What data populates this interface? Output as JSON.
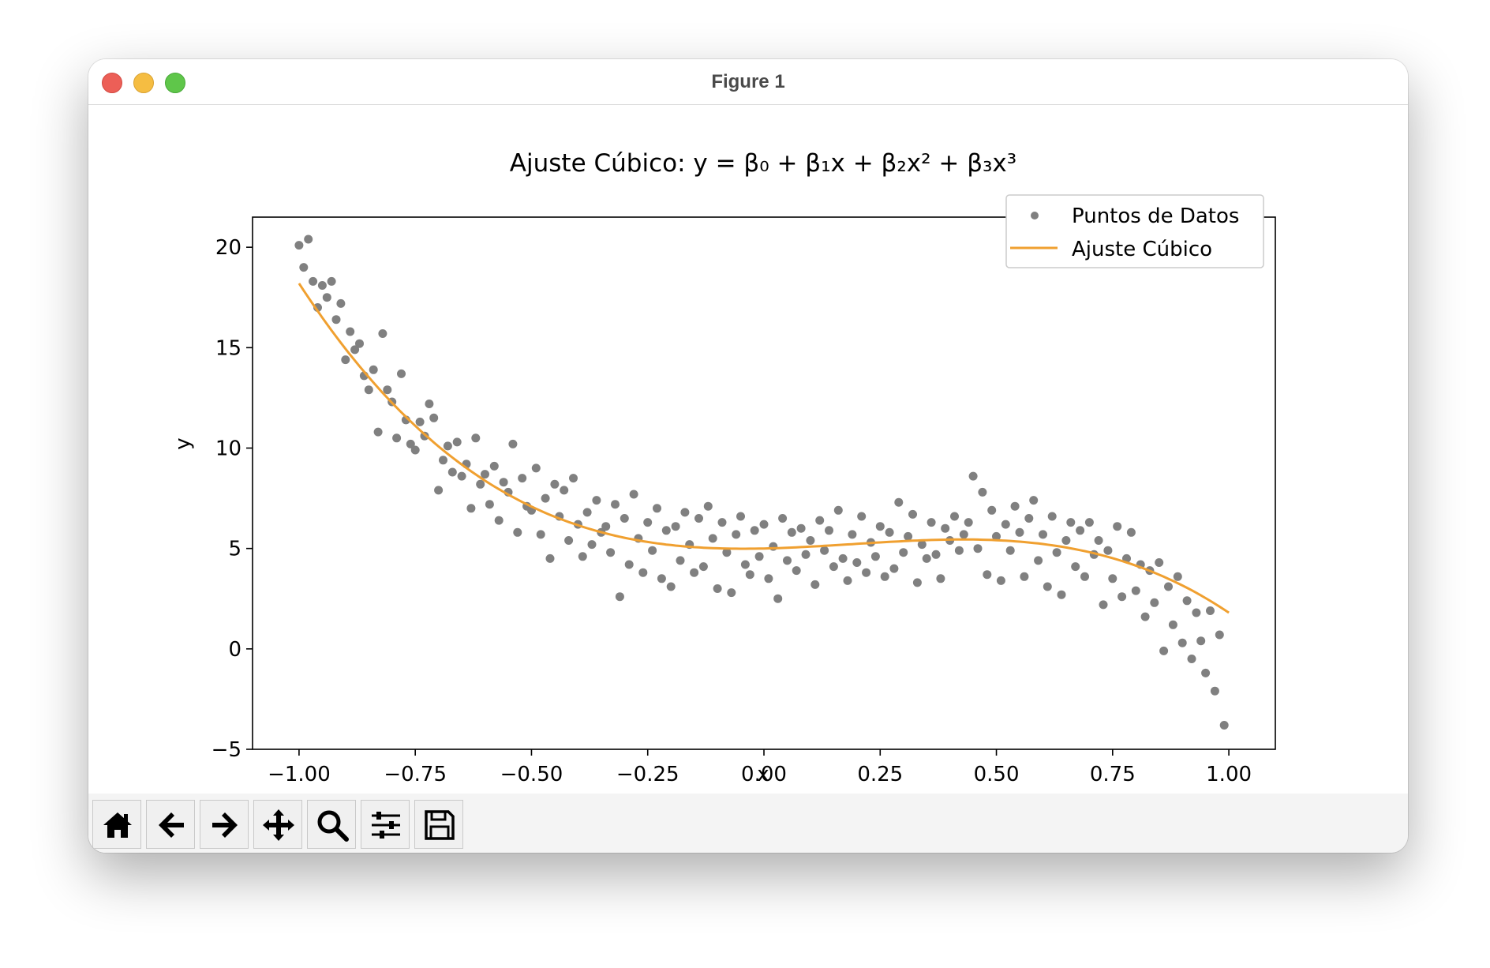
{
  "window": {
    "title": "Figure 1"
  },
  "toolbar": {
    "buttons": [
      {
        "icon": "home-icon"
      },
      {
        "icon": "back-arrow-icon"
      },
      {
        "icon": "forward-arrow-icon"
      },
      {
        "icon": "pan-icon"
      },
      {
        "icon": "zoom-icon"
      },
      {
        "icon": "configure-subplots-icon"
      },
      {
        "icon": "save-icon"
      }
    ]
  },
  "colors": {
    "points": "#808080",
    "fit": "#f0a030",
    "axes": "#000000"
  },
  "chart_data": {
    "type": "scatter",
    "title": "Ajuste Cúbico: y = β₀ + β₁x + β₂x² + β₃x³",
    "xlabel": "x",
    "ylabel": "y",
    "xlim": [
      -1.1,
      1.1
    ],
    "ylim": [
      -5,
      21.5
    ],
    "xticks": [
      -1.0,
      -0.75,
      -0.5,
      -0.25,
      0.0,
      0.25,
      0.5,
      0.75,
      1.0
    ],
    "xtick_labels": [
      "−1.00",
      "−0.75",
      "−0.50",
      "−0.25",
      "0.00",
      "0.25",
      "0.50",
      "0.75",
      "1.00"
    ],
    "yticks": [
      -5,
      0,
      5,
      10,
      15,
      20
    ],
    "ytick_labels": [
      "−5",
      "0",
      "5",
      "10",
      "15",
      "20"
    ],
    "legend": {
      "position": "top-right",
      "entries": [
        "Puntos de Datos",
        "Ajuste Cúbico"
      ]
    },
    "grid": false,
    "series": [
      {
        "name": "Puntos de Datos",
        "kind": "scatter",
        "points": [
          [
            -1.0,
            20.1
          ],
          [
            -0.99,
            19.0
          ],
          [
            -0.98,
            20.4
          ],
          [
            -0.97,
            18.3
          ],
          [
            -0.96,
            17.0
          ],
          [
            -0.95,
            18.1
          ],
          [
            -0.94,
            17.5
          ],
          [
            -0.93,
            18.3
          ],
          [
            -0.92,
            16.4
          ],
          [
            -0.91,
            17.2
          ],
          [
            -0.9,
            14.4
          ],
          [
            -0.89,
            15.8
          ],
          [
            -0.88,
            14.9
          ],
          [
            -0.87,
            15.2
          ],
          [
            -0.86,
            13.6
          ],
          [
            -0.85,
            12.9
          ],
          [
            -0.84,
            13.9
          ],
          [
            -0.83,
            10.8
          ],
          [
            -0.82,
            15.7
          ],
          [
            -0.81,
            12.9
          ],
          [
            -0.8,
            12.3
          ],
          [
            -0.79,
            10.5
          ],
          [
            -0.78,
            13.7
          ],
          [
            -0.77,
            11.4
          ],
          [
            -0.76,
            10.2
          ],
          [
            -0.75,
            9.9
          ],
          [
            -0.74,
            11.3
          ],
          [
            -0.73,
            10.6
          ],
          [
            -0.72,
            12.2
          ],
          [
            -0.71,
            11.5
          ],
          [
            -0.7,
            7.9
          ],
          [
            -0.69,
            9.4
          ],
          [
            -0.68,
            10.1
          ],
          [
            -0.67,
            8.8
          ],
          [
            -0.66,
            10.3
          ],
          [
            -0.65,
            8.6
          ],
          [
            -0.64,
            9.2
          ],
          [
            -0.63,
            7.0
          ],
          [
            -0.62,
            10.5
          ],
          [
            -0.61,
            8.2
          ],
          [
            -0.6,
            8.7
          ],
          [
            -0.59,
            7.2
          ],
          [
            -0.58,
            9.1
          ],
          [
            -0.57,
            6.4
          ],
          [
            -0.56,
            8.3
          ],
          [
            -0.55,
            7.8
          ],
          [
            -0.54,
            10.2
          ],
          [
            -0.53,
            5.8
          ],
          [
            -0.52,
            8.5
          ],
          [
            -0.51,
            7.1
          ],
          [
            -0.5,
            6.9
          ],
          [
            -0.49,
            9.0
          ],
          [
            -0.48,
            5.7
          ],
          [
            -0.47,
            7.5
          ],
          [
            -0.46,
            4.5
          ],
          [
            -0.45,
            8.2
          ],
          [
            -0.44,
            6.6
          ],
          [
            -0.43,
            7.9
          ],
          [
            -0.42,
            5.4
          ],
          [
            -0.41,
            8.5
          ],
          [
            -0.4,
            6.2
          ],
          [
            -0.39,
            4.6
          ],
          [
            -0.38,
            6.8
          ],
          [
            -0.37,
            5.2
          ],
          [
            -0.36,
            7.4
          ],
          [
            -0.35,
            5.8
          ],
          [
            -0.34,
            6.1
          ],
          [
            -0.33,
            4.8
          ],
          [
            -0.32,
            7.2
          ],
          [
            -0.31,
            2.6
          ],
          [
            -0.3,
            6.5
          ],
          [
            -0.29,
            4.2
          ],
          [
            -0.28,
            7.7
          ],
          [
            -0.27,
            5.5
          ],
          [
            -0.26,
            3.8
          ],
          [
            -0.25,
            6.3
          ],
          [
            -0.24,
            4.9
          ],
          [
            -0.23,
            7.0
          ],
          [
            -0.22,
            3.5
          ],
          [
            -0.21,
            5.9
          ],
          [
            -0.2,
            3.1
          ],
          [
            -0.19,
            6.1
          ],
          [
            -0.18,
            4.4
          ],
          [
            -0.17,
            6.8
          ],
          [
            -0.16,
            5.2
          ],
          [
            -0.15,
            3.8
          ],
          [
            -0.14,
            6.5
          ],
          [
            -0.13,
            4.1
          ],
          [
            -0.12,
            7.1
          ],
          [
            -0.11,
            5.5
          ],
          [
            -0.1,
            3.0
          ],
          [
            -0.09,
            6.3
          ],
          [
            -0.08,
            4.8
          ],
          [
            -0.07,
            2.8
          ],
          [
            -0.06,
            5.7
          ],
          [
            -0.05,
            6.6
          ],
          [
            -0.04,
            4.2
          ],
          [
            -0.03,
            3.7
          ],
          [
            -0.02,
            5.9
          ],
          [
            -0.01,
            4.6
          ],
          [
            0.0,
            6.2
          ],
          [
            0.01,
            3.5
          ],
          [
            0.02,
            5.1
          ],
          [
            0.03,
            2.5
          ],
          [
            0.04,
            6.5
          ],
          [
            0.05,
            4.4
          ],
          [
            0.06,
            5.8
          ],
          [
            0.07,
            3.9
          ],
          [
            0.08,
            6.0
          ],
          [
            0.09,
            4.7
          ],
          [
            0.1,
            5.4
          ],
          [
            0.11,
            3.2
          ],
          [
            0.12,
            6.4
          ],
          [
            0.13,
            4.9
          ],
          [
            0.14,
            5.9
          ],
          [
            0.15,
            4.1
          ],
          [
            0.16,
            6.9
          ],
          [
            0.17,
            4.5
          ],
          [
            0.18,
            3.4
          ],
          [
            0.19,
            5.7
          ],
          [
            0.2,
            4.3
          ],
          [
            0.21,
            6.6
          ],
          [
            0.22,
            3.8
          ],
          [
            0.23,
            5.3
          ],
          [
            0.24,
            4.6
          ],
          [
            0.25,
            6.1
          ],
          [
            0.26,
            3.6
          ],
          [
            0.27,
            5.8
          ],
          [
            0.28,
            4.0
          ],
          [
            0.29,
            7.3
          ],
          [
            0.3,
            4.8
          ],
          [
            0.31,
            5.6
          ],
          [
            0.32,
            6.7
          ],
          [
            0.33,
            3.3
          ],
          [
            0.34,
            5.2
          ],
          [
            0.35,
            4.5
          ],
          [
            0.36,
            6.3
          ],
          [
            0.37,
            4.7
          ],
          [
            0.38,
            3.5
          ],
          [
            0.39,
            6.0
          ],
          [
            0.4,
            5.4
          ],
          [
            0.41,
            6.6
          ],
          [
            0.42,
            4.9
          ],
          [
            0.43,
            5.7
          ],
          [
            0.44,
            6.3
          ],
          [
            0.45,
            8.6
          ],
          [
            0.46,
            5.0
          ],
          [
            0.47,
            7.8
          ],
          [
            0.48,
            3.7
          ],
          [
            0.49,
            6.9
          ],
          [
            0.5,
            5.6
          ],
          [
            0.51,
            3.4
          ],
          [
            0.52,
            6.2
          ],
          [
            0.53,
            4.9
          ],
          [
            0.54,
            7.1
          ],
          [
            0.55,
            5.8
          ],
          [
            0.56,
            3.6
          ],
          [
            0.57,
            6.5
          ],
          [
            0.58,
            7.4
          ],
          [
            0.59,
            4.4
          ],
          [
            0.6,
            5.7
          ],
          [
            0.61,
            3.1
          ],
          [
            0.62,
            6.6
          ],
          [
            0.63,
            4.8
          ],
          [
            0.64,
            2.7
          ],
          [
            0.65,
            5.4
          ],
          [
            0.66,
            6.3
          ],
          [
            0.67,
            4.1
          ],
          [
            0.68,
            5.9
          ],
          [
            0.69,
            3.6
          ],
          [
            0.7,
            6.3
          ],
          [
            0.71,
            4.7
          ],
          [
            0.72,
            5.4
          ],
          [
            0.73,
            2.2
          ],
          [
            0.74,
            4.9
          ],
          [
            0.75,
            3.5
          ],
          [
            0.76,
            6.1
          ],
          [
            0.77,
            2.6
          ],
          [
            0.78,
            4.5
          ],
          [
            0.79,
            5.8
          ],
          [
            0.8,
            2.9
          ],
          [
            0.81,
            4.2
          ],
          [
            0.82,
            1.6
          ],
          [
            0.83,
            3.9
          ],
          [
            0.84,
            2.3
          ],
          [
            0.85,
            4.3
          ],
          [
            0.86,
            -0.1
          ],
          [
            0.87,
            3.1
          ],
          [
            0.88,
            1.2
          ],
          [
            0.89,
            3.6
          ],
          [
            0.9,
            0.3
          ],
          [
            0.91,
            2.4
          ],
          [
            0.92,
            -0.5
          ],
          [
            0.93,
            1.8
          ],
          [
            0.94,
            0.4
          ],
          [
            0.95,
            -1.2
          ],
          [
            0.96,
            1.9
          ],
          [
            0.97,
            -2.1
          ],
          [
            0.98,
            0.7
          ],
          [
            0.99,
            -3.8
          ]
        ]
      },
      {
        "name": "Ajuste Cúbico",
        "kind": "line",
        "coefficients": [
          5.0,
          0.5,
          5.0,
          -8.7
        ]
      }
    ]
  }
}
